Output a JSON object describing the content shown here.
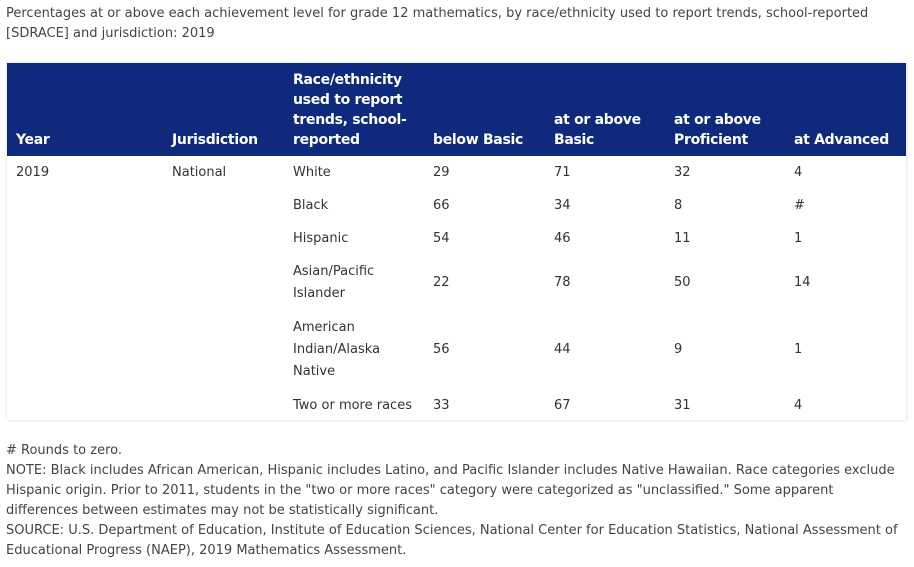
{
  "caption": "Percentages at or above each achievement level for grade 12 mathematics, by race/ethnicity used to report trends, school-reported [SDRACE] and jurisdiction: 2019",
  "table": {
    "headers": {
      "year": "Year",
      "jurisdiction": "Jurisdiction",
      "race": "Race/ethnicity used to report trends, school-reported",
      "below_basic": "below Basic",
      "at_or_above_basic": "at or above Basic",
      "at_or_above_proficient": "at or above Proficient",
      "at_advanced": "at Advanced"
    },
    "rows": [
      {
        "year": "2019",
        "jurisdiction": "National",
        "race": "White",
        "below_basic": "29",
        "at_or_above_basic": "71",
        "at_or_above_proficient": "32",
        "at_advanced": "4"
      },
      {
        "year": "",
        "jurisdiction": "",
        "race": "Black",
        "below_basic": "66",
        "at_or_above_basic": "34",
        "at_or_above_proficient": "8",
        "at_advanced": "#"
      },
      {
        "year": "",
        "jurisdiction": "",
        "race": "Hispanic",
        "below_basic": "54",
        "at_or_above_basic": "46",
        "at_or_above_proficient": "11",
        "at_advanced": "1"
      },
      {
        "year": "",
        "jurisdiction": "",
        "race": "Asian/Pacific Islander",
        "below_basic": "22",
        "at_or_above_basic": "78",
        "at_or_above_proficient": "50",
        "at_advanced": "14"
      },
      {
        "year": "",
        "jurisdiction": "",
        "race": "American Indian/Alaska Native",
        "below_basic": "56",
        "at_or_above_basic": "44",
        "at_or_above_proficient": "9",
        "at_advanced": "1"
      },
      {
        "year": "",
        "jurisdiction": "",
        "race": "Two or more races",
        "below_basic": "33",
        "at_or_above_basic": "67",
        "at_or_above_proficient": "31",
        "at_advanced": "4"
      }
    ]
  },
  "notes": {
    "rounds": "# Rounds to zero.",
    "note": "NOTE: Black includes African American, Hispanic includes Latino, and Pacific Islander includes Native Hawaiian. Race categories exclude Hispanic origin. Prior to 2011, students in the \"two or more races\" category were categorized as \"unclassified.\" Some apparent differences between estimates may not be statistically significant.",
    "source": "SOURCE: U.S. Department of Education, Institute of Education Sciences, National Center for Education Statistics, National Assessment of Educational Progress (NAEP), 2019 Mathematics Assessment."
  },
  "colors": {
    "header_bg": "#0f2a7c",
    "header_text": "#ffffff",
    "body_text": "#333333"
  }
}
